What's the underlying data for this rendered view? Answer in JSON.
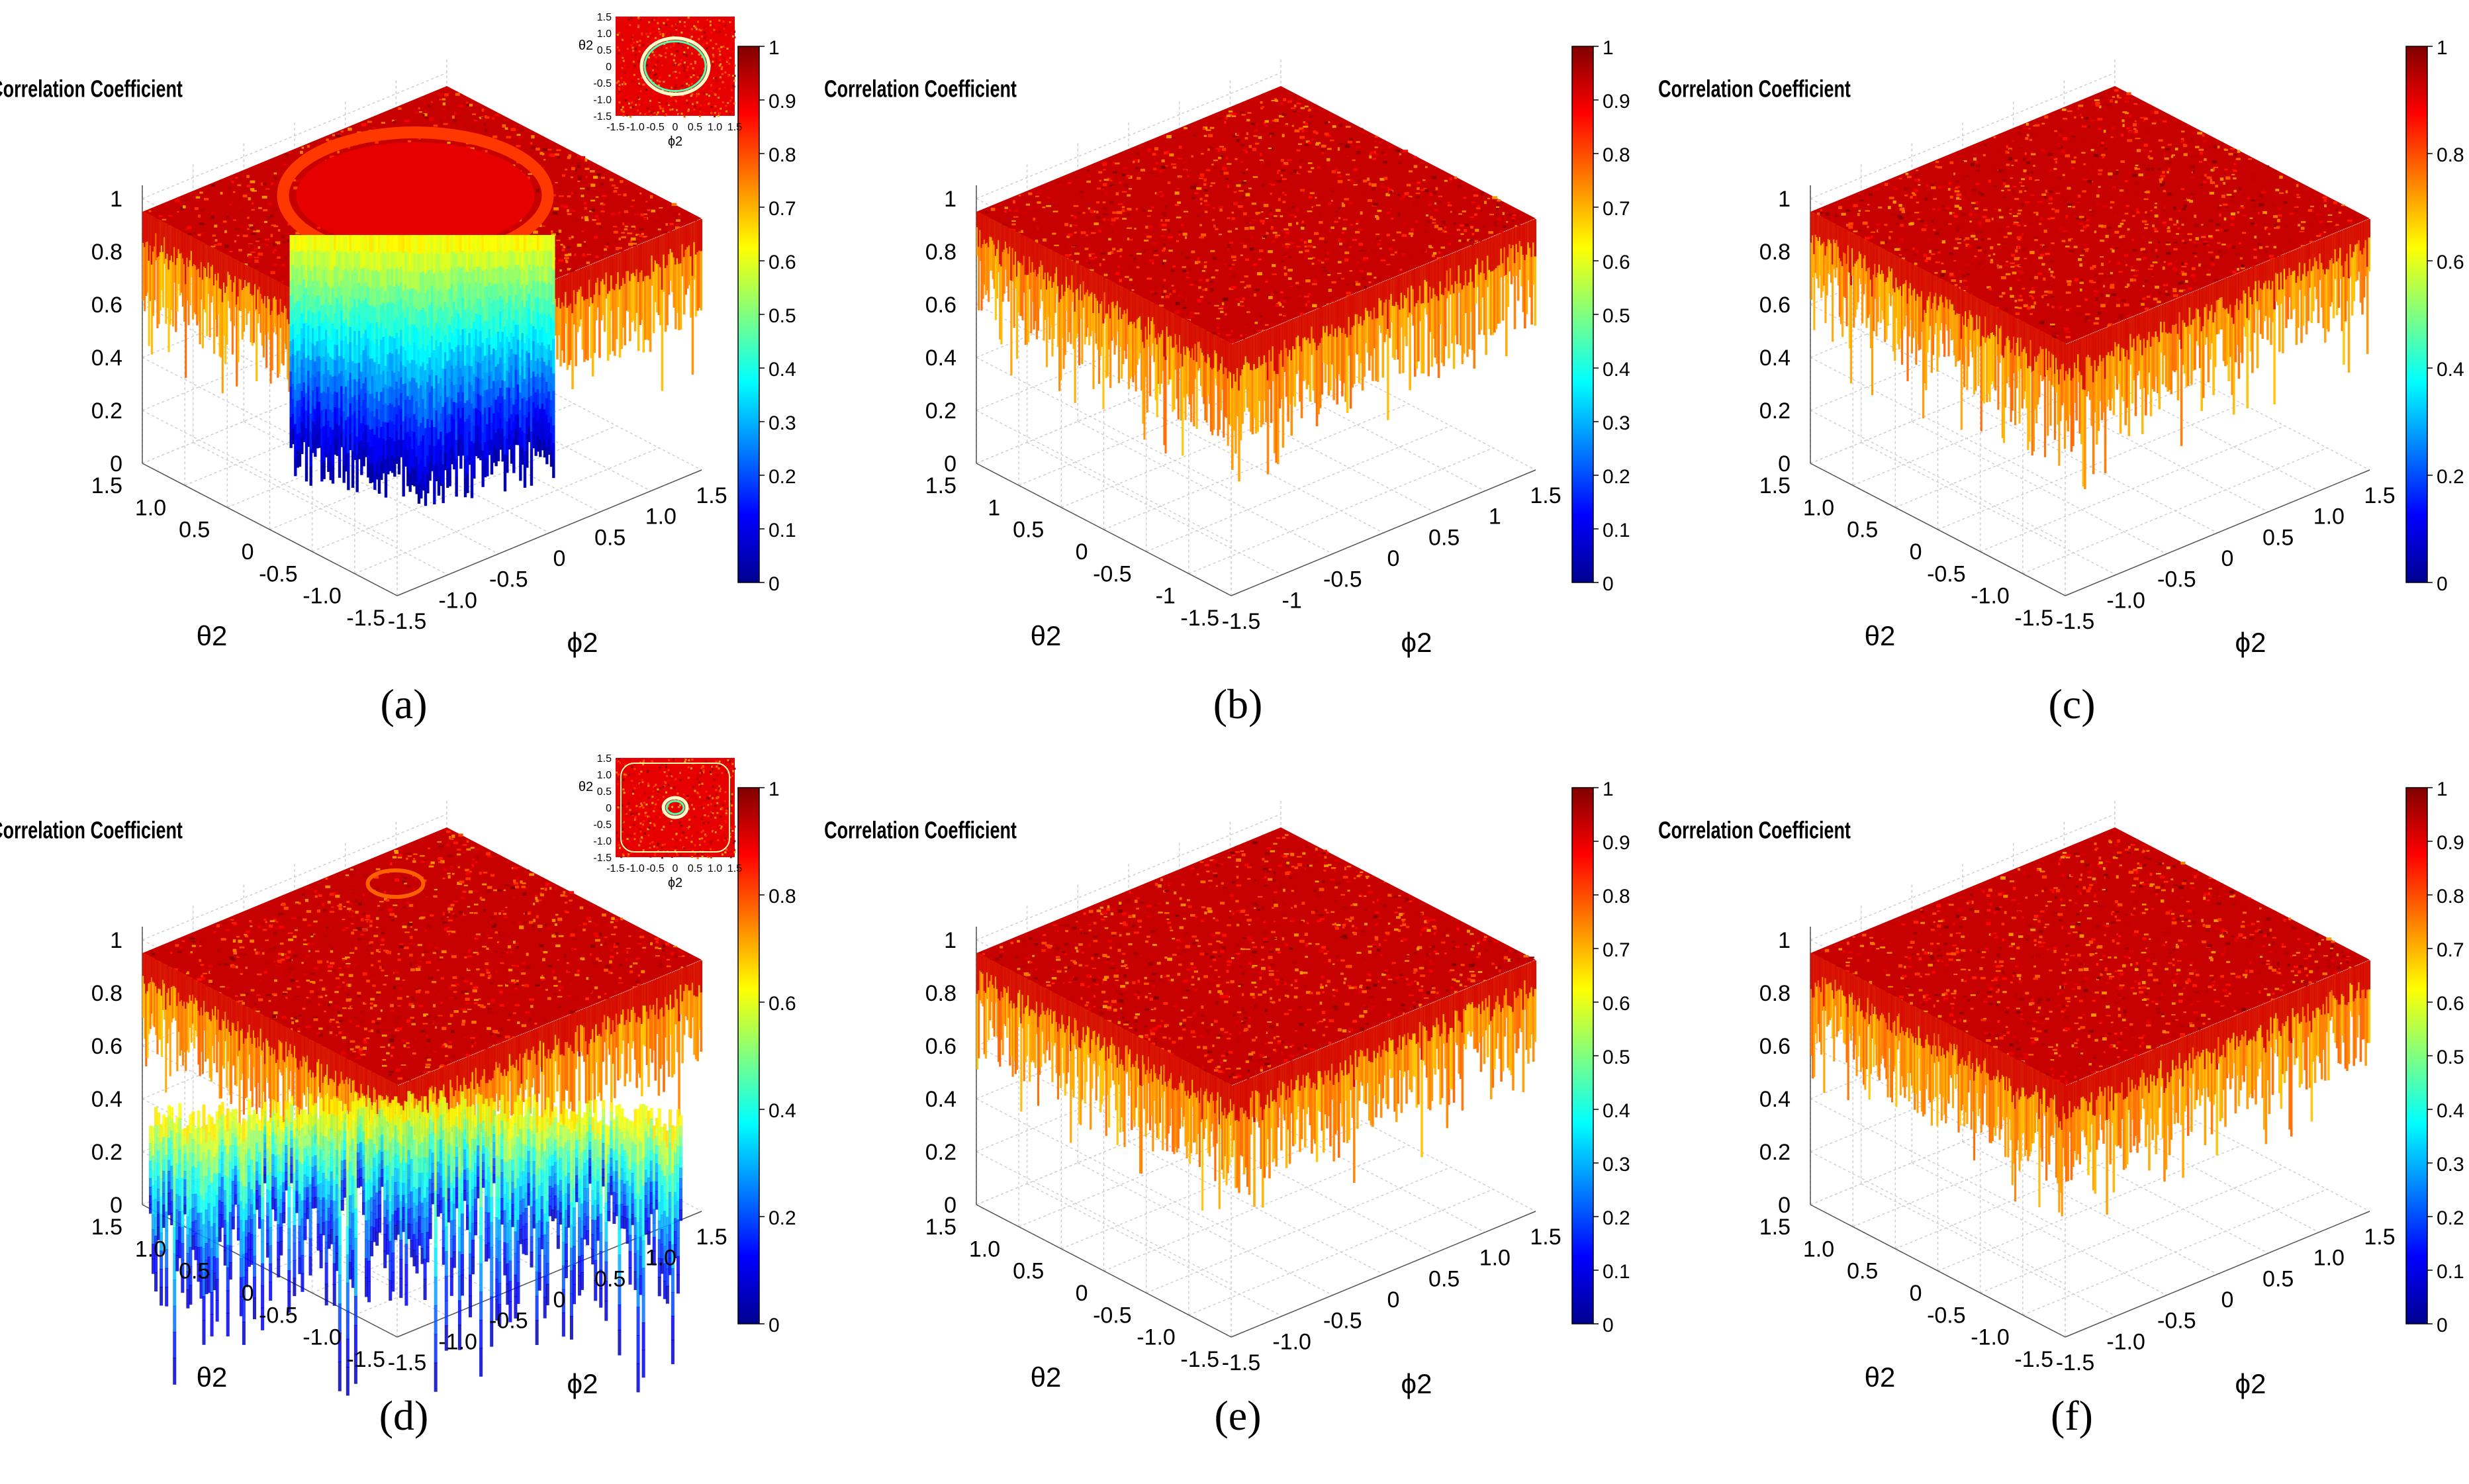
{
  "figure": {
    "panel_labels": [
      "(a)",
      "(b)",
      "(c)",
      "(d)",
      "(e)",
      "(f)"
    ]
  },
  "colormap": [
    "#00008f",
    "#0000ff",
    "#0080ff",
    "#00ffff",
    "#80ff80",
    "#ffff00",
    "#ff8000",
    "#ff0000",
    "#800000"
  ],
  "chart_data": [
    {
      "panel": "(a)",
      "type": "surface3d",
      "zlabel": "Correlation Coefficient",
      "xlabel": "ϕ2",
      "ylabel": "θ2",
      "xlim": [
        -1.5,
        1.5
      ],
      "ylim": [
        -1.5,
        1.5
      ],
      "zlim": [
        0,
        1
      ],
      "x_ticks": [
        "-1.5",
        "-1.0",
        "-0.5",
        "0",
        "0.5",
        "1.0",
        "1.5"
      ],
      "y_ticks": [
        "1.5",
        "1.0",
        "0.5",
        "0",
        "-0.5",
        "-1.0",
        "-1.5"
      ],
      "z_ticks": [
        "0",
        "0.2",
        "0.4",
        "0.6",
        "0.8",
        "1"
      ],
      "colorbar_ticks": [
        "0",
        "0.1",
        "0.2",
        "0.3",
        "0.4",
        "0.5",
        "0.6",
        "0.7",
        "0.8",
        "0.9",
        "1"
      ],
      "surface": {
        "plateau": 0.95,
        "plateau_noise": [
          0.55,
          1.0
        ],
        "dip": "circular well",
        "dip_radius": 0.8,
        "dip_value": 0.1
      },
      "inset": {
        "type": "heatmap",
        "xlabel": "ϕ2",
        "ylabel": "θ2",
        "x_ticks": [
          "-1.5",
          "-1.0",
          "-0.5",
          "0",
          "0.5",
          "1.0",
          "1.5"
        ],
        "y_ticks": [
          "1.5",
          "1.0",
          "0.5",
          "0",
          "-0.5",
          "-1.0",
          "-1.5"
        ],
        "feature": "ring",
        "ring_radius": 1.0
      }
    },
    {
      "panel": "(b)",
      "type": "surface3d",
      "zlabel": "Correlation Coefficient",
      "xlabel": "ϕ2",
      "ylabel": "θ2",
      "xlim": [
        -1.5,
        1.5
      ],
      "ylim": [
        -1.5,
        1.5
      ],
      "zlim": [
        0,
        1
      ],
      "x_ticks": [
        "-1.5",
        "-1",
        "-0.5",
        "0",
        "0.5",
        "1",
        "1.5"
      ],
      "y_ticks": [
        "1.5",
        "1",
        "0.5",
        "0",
        "-0.5",
        "-1",
        "-1.5"
      ],
      "z_ticks": [
        "0",
        "0.2",
        "0.4",
        "0.6",
        "0.8",
        "1"
      ],
      "colorbar_ticks": [
        "0",
        "0.1",
        "0.2",
        "0.3",
        "0.4",
        "0.5",
        "0.6",
        "0.7",
        "0.8",
        "0.9",
        "1"
      ],
      "surface": {
        "plateau": 0.95,
        "plateau_noise": [
          0.55,
          1.0
        ]
      }
    },
    {
      "panel": "(c)",
      "type": "surface3d",
      "zlabel": "Correlation Coefficient",
      "xlabel": "ϕ2",
      "ylabel": "θ2",
      "xlim": [
        -1.5,
        1.5
      ],
      "ylim": [
        -1.5,
        1.5
      ],
      "zlim": [
        0,
        1
      ],
      "x_ticks": [
        "-1.5",
        "-1.0",
        "-0.5",
        "0",
        "0.5",
        "1.0",
        "1.5"
      ],
      "y_ticks": [
        "1.5",
        "1.0",
        "0.5",
        "0",
        "-0.5",
        "-1.0",
        "-1.5"
      ],
      "z_ticks": [
        "0",
        "0.2",
        "0.4",
        "0.6",
        "0.8",
        "1"
      ],
      "colorbar_ticks": [
        "0",
        "0.2",
        "0.4",
        "0.6",
        "0.8",
        "1"
      ],
      "surface": {
        "plateau": 0.95,
        "plateau_noise": [
          0.55,
          1.0
        ]
      }
    },
    {
      "panel": "(d)",
      "type": "surface3d",
      "zlabel": "Correlation Coefficient",
      "xlabel": "ϕ2",
      "ylabel": "θ2",
      "xlim": [
        -1.5,
        1.5
      ],
      "ylim": [
        -1.5,
        1.5
      ],
      "zlim": [
        0,
        1
      ],
      "x_ticks": [
        "-1.5",
        "-1.0",
        "-0.5",
        "0",
        "0.5",
        "1.0",
        "1.5"
      ],
      "y_ticks": [
        "1.5",
        "1.0",
        "0.5",
        "0",
        "-0.5",
        "-1.0",
        "-1.5"
      ],
      "z_ticks": [
        "0",
        "0.2",
        "0.4",
        "0.6",
        "0.8",
        "1"
      ],
      "colorbar_ticks": [
        "0",
        "0.2",
        "0.4",
        "0.6",
        "0.8",
        "1"
      ],
      "surface": {
        "plateau": 0.95,
        "plateau_noise": [
          0.55,
          1.0
        ],
        "dip": "irregular spikes",
        "dip_value": 0.05
      },
      "inset": {
        "type": "heatmap",
        "xlabel": "ϕ2",
        "ylabel": "θ2",
        "x_ticks": [
          "-1.5",
          "-1.0",
          "-0.5",
          "0",
          "0.5",
          "1.0",
          "1.5"
        ],
        "y_ticks": [
          "1.5",
          "1.0",
          "0.5",
          "0",
          "-0.5",
          "-1.0",
          "-1.5"
        ],
        "feature": "small ring",
        "ring_radius": 0.35
      }
    },
    {
      "panel": "(e)",
      "type": "surface3d",
      "zlabel": "Correlation Coefficient",
      "xlabel": "ϕ2",
      "ylabel": "θ2",
      "xlim": [
        -1.5,
        1.5
      ],
      "ylim": [
        -1.5,
        1.5
      ],
      "zlim": [
        0,
        1
      ],
      "x_ticks": [
        "-1.5",
        "-1.0",
        "-0.5",
        "0",
        "0.5",
        "1.0",
        "1.5"
      ],
      "y_ticks": [
        "1.5",
        "1.0",
        "0.5",
        "0",
        "-0.5",
        "-1.0",
        "-1.5"
      ],
      "z_ticks": [
        "0",
        "0.2",
        "0.4",
        "0.6",
        "0.8",
        "1"
      ],
      "colorbar_ticks": [
        "0",
        "0.1",
        "0.2",
        "0.3",
        "0.4",
        "0.5",
        "0.6",
        "0.7",
        "0.8",
        "0.9",
        "1"
      ],
      "surface": {
        "plateau": 0.95,
        "plateau_noise": [
          0.55,
          1.0
        ]
      }
    },
    {
      "panel": "(f)",
      "type": "surface3d",
      "zlabel": "Correlation Coefficient",
      "xlabel": "ϕ2",
      "ylabel": "θ2",
      "xlim": [
        -1.5,
        1.5
      ],
      "ylim": [
        -1.5,
        1.5
      ],
      "zlim": [
        0,
        1
      ],
      "x_ticks": [
        "-1.5",
        "-1.0",
        "-0.5",
        "0",
        "0.5",
        "1.0",
        "1.5"
      ],
      "y_ticks": [
        "1.5",
        "1.0",
        "0.5",
        "0",
        "-0.5",
        "-1.0",
        "-1.5"
      ],
      "z_ticks": [
        "0",
        "0.2",
        "0.4",
        "0.6",
        "0.8",
        "1"
      ],
      "colorbar_ticks": [
        "0",
        "0.1",
        "0.2",
        "0.3",
        "0.4",
        "0.5",
        "0.6",
        "0.7",
        "0.8",
        "0.9",
        "1"
      ],
      "surface": {
        "plateau": 0.95,
        "plateau_noise": [
          0.55,
          1.0
        ]
      }
    }
  ]
}
